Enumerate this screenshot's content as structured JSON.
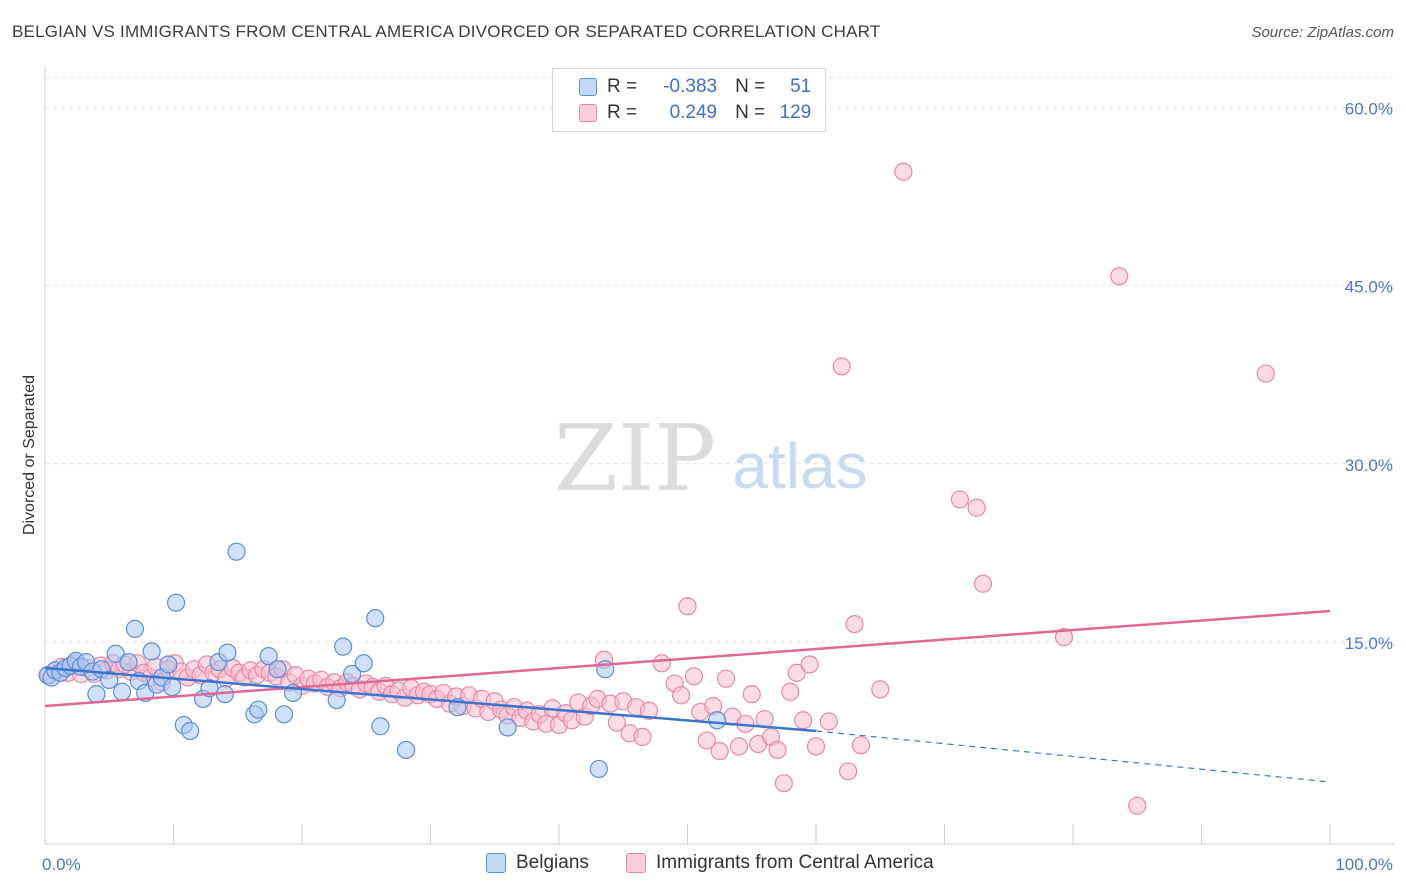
{
  "title": "BELGIAN VS IMMIGRANTS FROM CENTRAL AMERICA DIVORCED OR SEPARATED CORRELATION CHART",
  "source": "Source: ZipAtlas.com",
  "watermark": {
    "zip": "ZIP",
    "atlas": "atlas"
  },
  "legend": {
    "row1": {
      "r_label": "R =",
      "r_value": "-0.383",
      "n_label": "N =",
      "n_value": "51"
    },
    "row2": {
      "r_label": "R =",
      "r_value": "0.249",
      "n_label": "N =",
      "n_value": "129"
    }
  },
  "colors": {
    "belgians_fill": "#a9c8f0",
    "belgians_stroke": "#5b8fd9",
    "belgians_line": "#3a76d0",
    "immigrants_fill": "#f7bfd0",
    "immigrants_stroke": "#e888a8",
    "immigrants_line": "#e06896",
    "tick_text": "#4a78c8"
  },
  "chart_data": {
    "type": "scatter",
    "title": "BELGIAN VS IMMIGRANTS FROM CENTRAL AMERICA DIVORCED OR SEPARATED CORRELATION CHART",
    "xlabel": "",
    "ylabel": "Divorced or Separated",
    "xlim": [
      0,
      100
    ],
    "ylim": [
      0,
      63
    ],
    "x_tick_labels": [
      "0.0%",
      "100.0%"
    ],
    "y_ticks": [
      15,
      30,
      45,
      60
    ],
    "y_tick_labels": [
      "15.0%",
      "30.0%",
      "45.0%",
      "60.0%"
    ],
    "grid": true,
    "legend_position": "bottom",
    "series": [
      {
        "name": "Belgians",
        "r": -0.383,
        "n": 51,
        "trend": {
          "x0": 0,
          "y0": 12.8,
          "x1": 60,
          "y1": 7.5,
          "dashed_to_x": 100,
          "dashed_to_y": 3.2
        },
        "points": [
          [
            0.2,
            12.2
          ],
          [
            0.5,
            12.0
          ],
          [
            0.8,
            12.6
          ],
          [
            1.2,
            12.4
          ],
          [
            1.6,
            12.8
          ],
          [
            2.0,
            13.0
          ],
          [
            2.4,
            13.4
          ],
          [
            2.8,
            12.9
          ],
          [
            3.2,
            13.3
          ],
          [
            3.7,
            12.5
          ],
          [
            4.0,
            10.6
          ],
          [
            4.4,
            12.7
          ],
          [
            5.0,
            11.8
          ],
          [
            5.5,
            14.0
          ],
          [
            6.0,
            10.8
          ],
          [
            6.5,
            13.3
          ],
          [
            7.0,
            16.1
          ],
          [
            7.3,
            11.7
          ],
          [
            7.8,
            10.7
          ],
          [
            8.3,
            14.2
          ],
          [
            8.7,
            11.4
          ],
          [
            9.1,
            12.0
          ],
          [
            9.6,
            13.1
          ],
          [
            9.9,
            11.2
          ],
          [
            10.2,
            18.3
          ],
          [
            10.8,
            8.0
          ],
          [
            11.3,
            7.5
          ],
          [
            12.3,
            10.2
          ],
          [
            12.8,
            11.1
          ],
          [
            13.5,
            13.3
          ],
          [
            14.0,
            10.6
          ],
          [
            14.2,
            14.1
          ],
          [
            14.9,
            22.6
          ],
          [
            16.3,
            8.9
          ],
          [
            16.6,
            9.3
          ],
          [
            17.4,
            13.8
          ],
          [
            18.1,
            12.7
          ],
          [
            18.6,
            8.9
          ],
          [
            19.3,
            10.7
          ],
          [
            22.7,
            10.1
          ],
          [
            23.2,
            14.6
          ],
          [
            23.9,
            12.3
          ],
          [
            24.8,
            13.2
          ],
          [
            25.7,
            17.0
          ],
          [
            26.1,
            7.9
          ],
          [
            28.1,
            5.9
          ],
          [
            32.1,
            9.5
          ],
          [
            36.0,
            7.8
          ],
          [
            43.1,
            4.3
          ],
          [
            43.6,
            12.7
          ],
          [
            52.3,
            8.4
          ]
        ]
      },
      {
        "name": "Immigrants from Central America",
        "r": 0.249,
        "n": 129,
        "trend": {
          "x0": 0,
          "y0": 9.6,
          "x1": 100,
          "y1": 17.6
        },
        "points": [
          [
            0.3,
            12.2
          ],
          [
            0.8,
            12.6
          ],
          [
            1.3,
            12.9
          ],
          [
            1.8,
            12.4
          ],
          [
            2.3,
            13.2
          ],
          [
            2.8,
            12.3
          ],
          [
            3.3,
            12.8
          ],
          [
            3.8,
            12.3
          ],
          [
            4.3,
            13.0
          ],
          [
            4.8,
            12.6
          ],
          [
            5.3,
            13.2
          ],
          [
            5.8,
            12.7
          ],
          [
            6.2,
            13.1
          ],
          [
            6.7,
            12.5
          ],
          [
            7.2,
            13.2
          ],
          [
            7.7,
            12.4
          ],
          [
            8.2,
            12.0
          ],
          [
            8.6,
            12.9
          ],
          [
            9.1,
            11.6
          ],
          [
            9.6,
            12.7
          ],
          [
            10.1,
            13.2
          ],
          [
            10.6,
            12.5
          ],
          [
            11.1,
            12.0
          ],
          [
            11.6,
            12.7
          ],
          [
            12.1,
            12.2
          ],
          [
            12.6,
            13.1
          ],
          [
            13.1,
            12.4
          ],
          [
            13.6,
            12.7
          ],
          [
            14.1,
            11.9
          ],
          [
            14.6,
            12.8
          ],
          [
            15.1,
            12.4
          ],
          [
            15.5,
            12.0
          ],
          [
            16.0,
            12.6
          ],
          [
            16.5,
            12.2
          ],
          [
            17.0,
            12.7
          ],
          [
            17.5,
            12.4
          ],
          [
            18.0,
            12.1
          ],
          [
            18.5,
            12.7
          ],
          [
            19.0,
            11.6
          ],
          [
            19.5,
            12.2
          ],
          [
            20.0,
            11.3
          ],
          [
            20.5,
            11.9
          ],
          [
            21.0,
            11.5
          ],
          [
            21.5,
            11.8
          ],
          [
            22.0,
            11.2
          ],
          [
            22.5,
            11.6
          ],
          [
            23.0,
            11.1
          ],
          [
            23.5,
            11.6
          ],
          [
            24.0,
            11.3
          ],
          [
            24.5,
            11.0
          ],
          [
            25.0,
            11.5
          ],
          [
            25.5,
            11.2
          ],
          [
            26.0,
            10.8
          ],
          [
            26.5,
            11.3
          ],
          [
            27.0,
            10.6
          ],
          [
            27.5,
            10.9
          ],
          [
            28.0,
            10.3
          ],
          [
            28.5,
            11.1
          ],
          [
            29.0,
            10.5
          ],
          [
            29.5,
            10.8
          ],
          [
            30.0,
            10.6
          ],
          [
            30.5,
            10.2
          ],
          [
            31.0,
            10.7
          ],
          [
            31.5,
            9.8
          ],
          [
            32.0,
            10.4
          ],
          [
            32.5,
            9.6
          ],
          [
            33.0,
            10.5
          ],
          [
            33.5,
            9.4
          ],
          [
            34.0,
            10.2
          ],
          [
            34.5,
            9.1
          ],
          [
            35.0,
            10.0
          ],
          [
            35.5,
            9.3
          ],
          [
            36.0,
            8.8
          ],
          [
            36.5,
            9.5
          ],
          [
            37.0,
            8.6
          ],
          [
            37.5,
            9.2
          ],
          [
            38.0,
            8.3
          ],
          [
            38.5,
            8.9
          ],
          [
            39.0,
            8.1
          ],
          [
            39.5,
            9.4
          ],
          [
            40.0,
            8.0
          ],
          [
            40.5,
            9.0
          ],
          [
            41.0,
            8.4
          ],
          [
            41.5,
            9.9
          ],
          [
            42.0,
            8.7
          ],
          [
            42.5,
            9.6
          ],
          [
            43.0,
            10.2
          ],
          [
            43.5,
            13.5
          ],
          [
            44.0,
            9.8
          ],
          [
            44.5,
            8.2
          ],
          [
            45.0,
            10.0
          ],
          [
            45.5,
            7.3
          ],
          [
            46.0,
            9.5
          ],
          [
            46.5,
            7.0
          ],
          [
            47.0,
            9.2
          ],
          [
            48.0,
            13.2
          ],
          [
            49.0,
            11.5
          ],
          [
            49.5,
            10.5
          ],
          [
            50.0,
            18.0
          ],
          [
            50.5,
            12.1
          ],
          [
            51.0,
            9.1
          ],
          [
            51.5,
            6.7
          ],
          [
            52.0,
            9.6
          ],
          [
            52.5,
            5.8
          ],
          [
            53.0,
            11.9
          ],
          [
            53.5,
            8.7
          ],
          [
            54.0,
            6.2
          ],
          [
            54.5,
            8.1
          ],
          [
            55.0,
            10.6
          ],
          [
            55.5,
            6.4
          ],
          [
            56.0,
            8.5
          ],
          [
            56.5,
            7.0
          ],
          [
            57.0,
            5.9
          ],
          [
            57.5,
            3.1
          ],
          [
            58.0,
            10.8
          ],
          [
            58.5,
            12.4
          ],
          [
            59.0,
            8.4
          ],
          [
            59.5,
            13.1
          ],
          [
            60.0,
            6.2
          ],
          [
            61.0,
            8.3
          ],
          [
            62.0,
            38.2
          ],
          [
            62.5,
            4.1
          ],
          [
            63.0,
            16.5
          ],
          [
            63.5,
            6.3
          ],
          [
            65.0,
            11.0
          ],
          [
            66.8,
            54.6
          ],
          [
            71.2,
            27.0
          ],
          [
            72.5,
            26.3
          ],
          [
            73.0,
            19.9
          ],
          [
            79.3,
            15.4
          ],
          [
            83.6,
            45.8
          ],
          [
            85.0,
            1.2
          ],
          [
            95.0,
            37.6
          ]
        ]
      }
    ]
  }
}
